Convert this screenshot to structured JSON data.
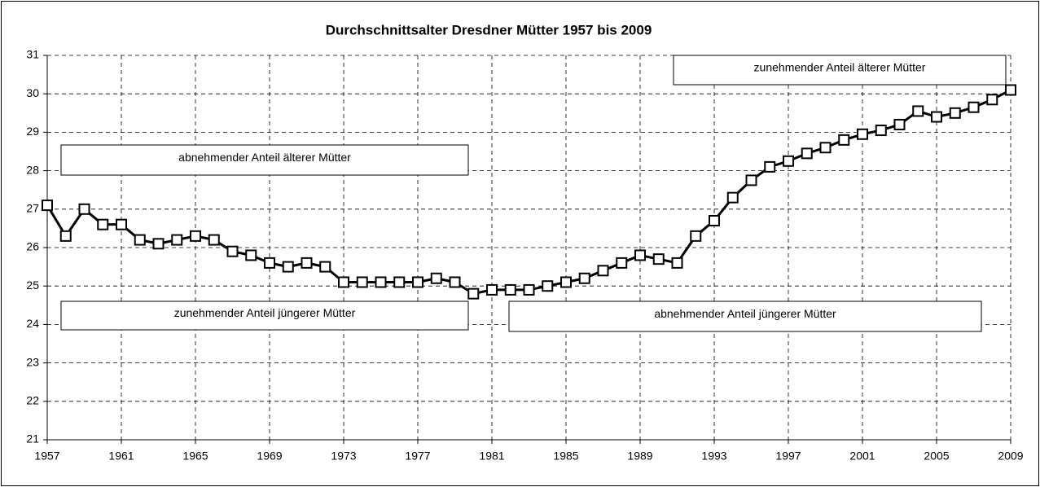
{
  "chart_data": {
    "type": "line",
    "title": "Durchschnittsalter Dresdner Mütter 1957 bis 2009",
    "x": [
      1957,
      1958,
      1959,
      1960,
      1961,
      1962,
      1963,
      1964,
      1965,
      1966,
      1967,
      1968,
      1969,
      1970,
      1971,
      1972,
      1973,
      1974,
      1975,
      1976,
      1977,
      1978,
      1979,
      1980,
      1981,
      1982,
      1983,
      1984,
      1985,
      1986,
      1987,
      1988,
      1989,
      1990,
      1991,
      1992,
      1993,
      1994,
      1995,
      1996,
      1997,
      1998,
      1999,
      2000,
      2001,
      2002,
      2003,
      2004,
      2005,
      2006,
      2007,
      2008,
      2009
    ],
    "series": [
      {
        "color": "#000000",
        "values": [
          27.1,
          26.3,
          27.0,
          26.6,
          26.6,
          26.2,
          26.1,
          26.2,
          26.3,
          26.2,
          25.9,
          25.8,
          25.6,
          25.5,
          25.6,
          25.5,
          25.1,
          25.1,
          25.1,
          25.1,
          25.1,
          25.2,
          25.1,
          24.8,
          24.9,
          24.9,
          24.9,
          25.0,
          25.1,
          25.2,
          25.4,
          25.6,
          25.8,
          25.7,
          25.6,
          26.3,
          26.7,
          27.3,
          27.75,
          28.1,
          28.25,
          28.45,
          28.6,
          28.8,
          28.95,
          29.05,
          29.2,
          29.55,
          29.4,
          29.5,
          29.65,
          29.85,
          30.1
        ]
      }
    ],
    "xlim": [
      1957,
      2009
    ],
    "xticks": [
      1957,
      1961,
      1965,
      1969,
      1973,
      1977,
      1981,
      1985,
      1989,
      1993,
      1997,
      2001,
      2005,
      2009
    ],
    "ylim": [
      21,
      31
    ],
    "yticks": [
      21,
      22,
      23,
      24,
      25,
      26,
      27,
      28,
      29,
      30,
      31
    ],
    "grid": true,
    "annotations": [
      "abnehmender Anteil älterer Mütter",
      "zunehmender Anteil jüngerer Mütter",
      "abnehmender Anteil jüngerer Mütter",
      "zunehmender Anteil älterer Mütter"
    ]
  }
}
